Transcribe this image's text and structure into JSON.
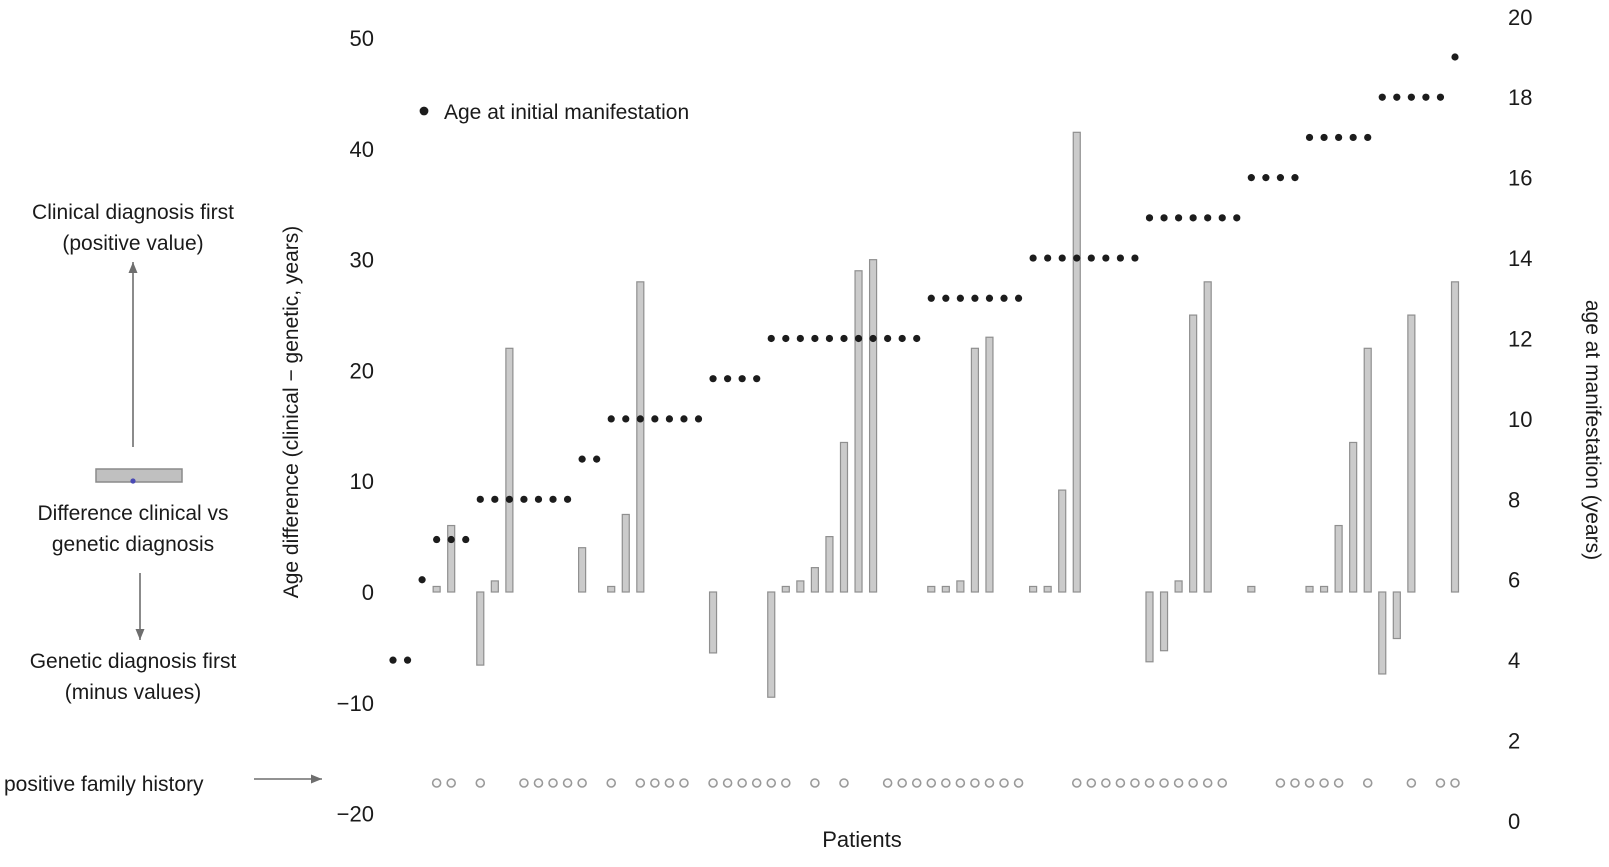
{
  "figure": {
    "background": "#ffffff",
    "legend": {
      "label": "Age at initial manifestation"
    },
    "xlabel": "Patients",
    "left_axis": {
      "label": "Age difference (clinical − genetic, years)",
      "ticks": [
        "50",
        "40",
        "30",
        "20",
        "10",
        "0",
        "−10",
        "−20"
      ]
    },
    "right_axis": {
      "label": "age at manifestation (years)",
      "ticks": [
        "20",
        "18",
        "16",
        "14",
        "12",
        "10",
        "8",
        "6",
        "4",
        "2",
        "0"
      ]
    },
    "annotations": {
      "clinical_first_line1": "Clinical diagnosis first",
      "clinical_first_line2": "(positive value)",
      "diff_line1": "Difference clinical vs",
      "diff_line2": "genetic diagnosis",
      "genetic_first_line1": "Genetic diagnosis first",
      "genetic_first_line2": "(minus values)",
      "family_history": "positive family history"
    },
    "colors": {
      "bar_fill": "#cbcbcb",
      "bar_stroke": "#8f8f8f",
      "dot": "#1c1c1c",
      "family_circle_stroke": "#999999",
      "family_circle_fill": "#fafafa",
      "arrow": "#6e6e6e",
      "glyph_bar_fill": "#c0c0c0",
      "glyph_bar_stroke": "#8a8a8a",
      "glyph_dot": "#4a4ab5"
    }
  },
  "chart_data": {
    "type": "bar",
    "x_unit": "patients (sorted by age at manifestation)",
    "n_patients": 74,
    "xlabel": "Patients",
    "ylabel_left": "Age difference (clinical − genetic, years)",
    "ylabel_right": "age at manifestation (years)",
    "left_axis_range": [
      -20,
      50
    ],
    "right_axis_range": [
      0,
      20
    ],
    "grid": false,
    "legend_position": "top-left",
    "series": [
      {
        "name": "Age difference (clinical − genetic, years)",
        "type": "bar",
        "axis": "left",
        "values": [
          0,
          0,
          0,
          0.5,
          6,
          0,
          -6.6,
          1,
          22,
          0,
          0,
          0,
          0,
          4,
          0,
          0.5,
          7,
          28,
          0,
          0,
          0,
          0,
          -5.5,
          0,
          0,
          0,
          -9.5,
          0.5,
          1,
          2.2,
          5,
          13.5,
          29,
          30,
          0,
          0,
          0,
          0.5,
          0.5,
          1,
          22,
          23,
          0,
          0,
          0.5,
          0.5,
          9.2,
          41.5,
          0,
          0,
          0,
          0,
          -6.3,
          -5.3,
          1,
          25,
          28,
          0,
          0,
          0.5,
          0,
          0,
          0,
          0.5,
          0.5,
          6,
          13.5,
          22,
          -7.4,
          -4.2,
          25,
          0,
          0,
          28
        ]
      },
      {
        "name": "Age at initial manifestation",
        "type": "scatter",
        "axis": "right",
        "values": [
          4,
          4,
          6,
          7,
          7,
          7,
          8,
          8,
          8,
          8,
          8,
          8,
          8,
          9,
          9,
          10,
          10,
          10,
          10,
          10,
          10,
          10,
          11,
          11,
          11,
          11,
          12,
          12,
          12,
          12,
          12,
          12,
          12,
          12,
          12,
          12,
          12,
          13,
          13,
          13,
          13,
          13,
          13,
          13,
          14,
          14,
          14,
          14,
          14,
          14,
          14,
          14,
          15,
          15,
          15,
          15,
          15,
          15,
          15,
          16,
          16,
          16,
          16,
          17,
          17,
          17,
          17,
          17,
          18,
          18,
          18,
          18,
          18,
          19
        ]
      },
      {
        "name": "positive family history",
        "type": "marker-row",
        "values": [
          0,
          0,
          0,
          1,
          1,
          0,
          1,
          0,
          0,
          1,
          1,
          1,
          1,
          1,
          0,
          1,
          0,
          1,
          1,
          1,
          1,
          0,
          1,
          1,
          1,
          1,
          1,
          1,
          0,
          1,
          0,
          1,
          0,
          0,
          1,
          1,
          1,
          1,
          1,
          1,
          1,
          1,
          1,
          1,
          0,
          0,
          0,
          1,
          1,
          1,
          1,
          1,
          1,
          1,
          1,
          1,
          1,
          1,
          0,
          0,
          0,
          1,
          1,
          1,
          1,
          1,
          0,
          1,
          0,
          0,
          1,
          0,
          1,
          1
        ]
      }
    ]
  }
}
